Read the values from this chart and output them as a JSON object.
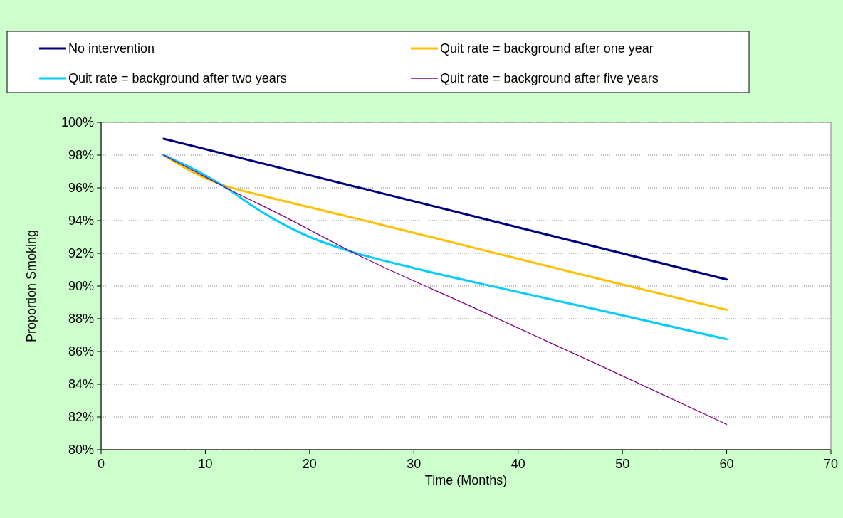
{
  "chart_data": {
    "type": "line",
    "xlabel": "Time (Months)",
    "ylabel": "Proportion Smoking",
    "xlim": [
      0,
      70
    ],
    "xticks": [
      0,
      10,
      20,
      30,
      40,
      50,
      60,
      70
    ],
    "ylim": [
      80,
      100
    ],
    "yticks": [
      {
        "value": 80,
        "label": "80%"
      },
      {
        "value": 82,
        "label": "82%"
      },
      {
        "value": 84,
        "label": "84%"
      },
      {
        "value": 86,
        "label": "86%"
      },
      {
        "value": 88,
        "label": "88%"
      },
      {
        "value": 90,
        "label": "90%"
      },
      {
        "value": 92,
        "label": "92%"
      },
      {
        "value": 94,
        "label": "94%"
      },
      {
        "value": 96,
        "label": "96%"
      },
      {
        "value": 98,
        "label": "98%"
      },
      {
        "value": 100,
        "label": "100%"
      }
    ],
    "grid": "y",
    "legend": "top",
    "marker": "none",
    "line_style": "solid",
    "series": [
      {
        "name": "No intervention",
        "color": "#000080",
        "x": [
          6,
          60
        ],
        "values": [
          99,
          90.4
        ]
      },
      {
        "name": "Quit rate = background after one year",
        "color": "#ffc000",
        "x": [
          6,
          9,
          12,
          15,
          24,
          36,
          48,
          60
        ],
        "values": [
          98,
          96.9,
          96.1,
          95.6,
          94.2,
          92.3,
          90.4,
          88.55
        ]
      },
      {
        "name": "Quit rate = background after two years",
        "color": "#00ccff",
        "x": [
          6,
          9,
          12,
          15,
          18,
          20,
          24,
          30,
          36,
          48,
          60
        ],
        "values": [
          98,
          97.1,
          96,
          94.7,
          93.6,
          93,
          92.1,
          91.1,
          90.2,
          88.5,
          86.75
        ]
      },
      {
        "name": "Quit rate = background after five years",
        "color": "#800080",
        "x": [
          6,
          9,
          12,
          18,
          24,
          36,
          48,
          60
        ],
        "values": [
          98,
          97,
          96,
          94.1,
          92.1,
          88.6,
          85.1,
          81.55
        ]
      }
    ]
  }
}
